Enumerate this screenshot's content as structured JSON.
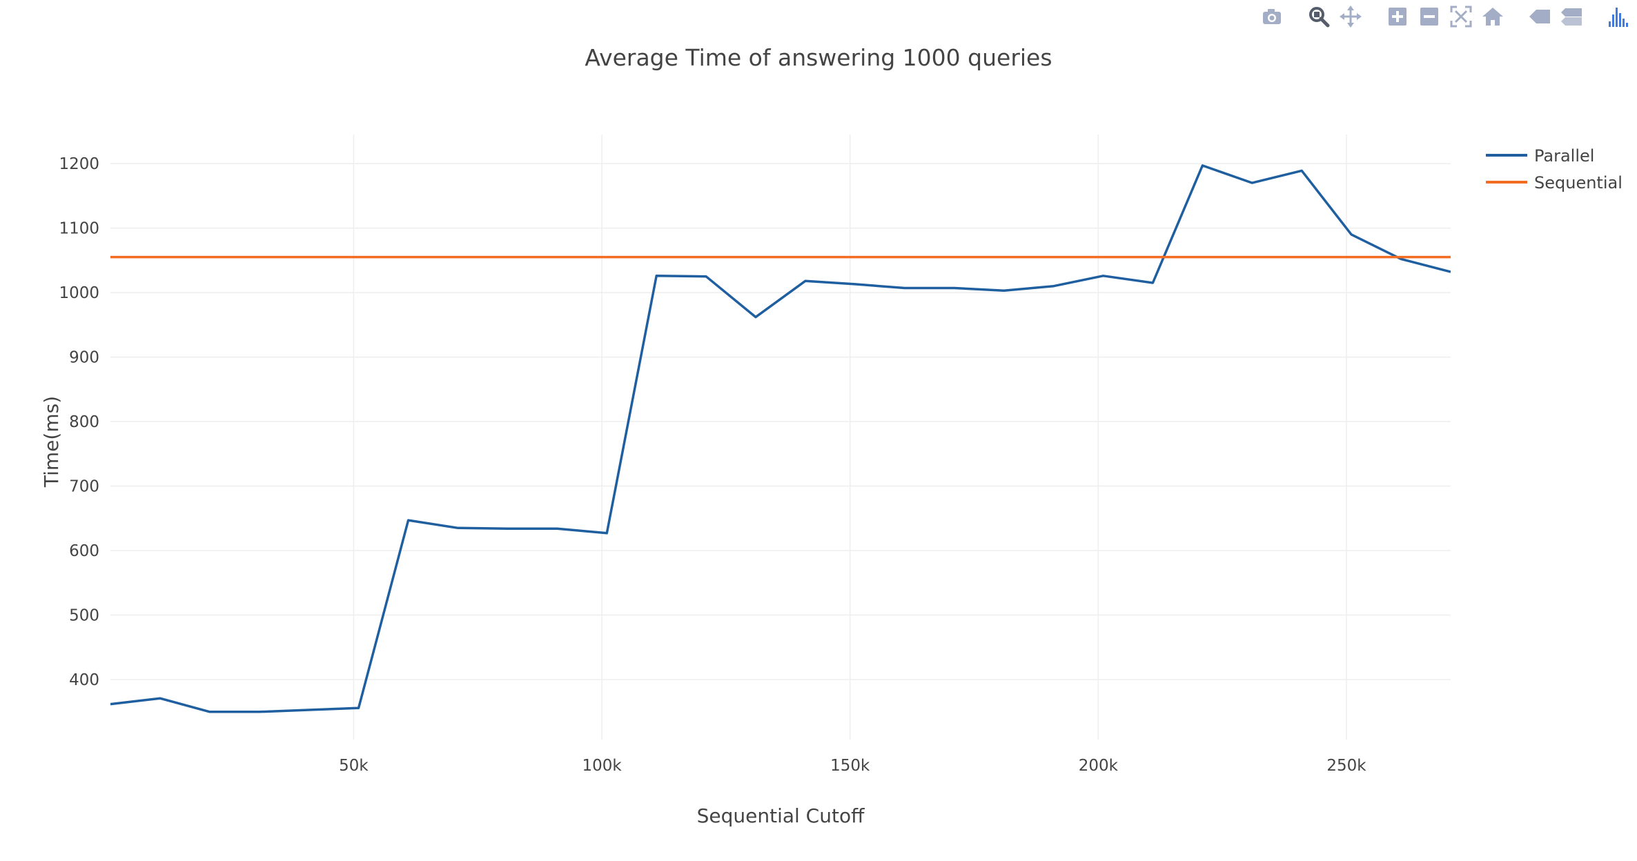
{
  "modebar": {
    "color": "#a3aec6",
    "accent": "#447adb",
    "groups": [
      [
        "camera-icon"
      ],
      [
        "zoom-icon",
        "pan-icon"
      ],
      [
        "zoom-in-icon",
        "zoom-out-icon",
        "autoscale-icon",
        "reset-axes-icon"
      ],
      [
        "hover-closest-icon",
        "hover-compare-icon"
      ],
      [
        "plotly-logo-icon"
      ]
    ]
  },
  "chart_data": {
    "type": "line",
    "title": "Average Time of answering 1000 queries",
    "xlabel": "Sequential Cutoff",
    "ylabel": "Time(ms)",
    "xlim": [
      1000,
      271000
    ],
    "ylim": [
      307,
      1245
    ],
    "xticks": [
      {
        "value": 50000,
        "label": "50k"
      },
      {
        "value": 100000,
        "label": "100k"
      },
      {
        "value": 150000,
        "label": "150k"
      },
      {
        "value": 200000,
        "label": "200k"
      },
      {
        "value": 250000,
        "label": "250k"
      }
    ],
    "yticks": [
      {
        "value": 400,
        "label": "400"
      },
      {
        "value": 500,
        "label": "500"
      },
      {
        "value": 600,
        "label": "600"
      },
      {
        "value": 700,
        "label": "700"
      },
      {
        "value": 800,
        "label": "800"
      },
      {
        "value": 900,
        "label": "900"
      },
      {
        "value": 1000,
        "label": "1000"
      },
      {
        "value": 1100,
        "label": "1100"
      },
      {
        "value": 1200,
        "label": "1200"
      }
    ],
    "grid": true,
    "legend_position": "top-right",
    "series": [
      {
        "name": "Parallel",
        "color": "#1f5fa0",
        "x": [
          1000,
          11000,
          21000,
          31000,
          41000,
          51000,
          61000,
          71000,
          81000,
          91000,
          101000,
          111000,
          121000,
          131000,
          141000,
          151000,
          161000,
          171000,
          181000,
          191000,
          201000,
          211000,
          221000,
          231000,
          241000,
          251000,
          261000,
          271000
        ],
        "y": [
          362,
          371,
          350,
          350,
          353,
          356,
          647,
          635,
          634,
          634,
          627,
          1026,
          1025,
          962,
          1018,
          1013,
          1007,
          1007,
          1003,
          1010,
          1026,
          1015,
          1197,
          1170,
          1189,
          1090,
          1052,
          1032
        ]
      },
      {
        "name": "Sequential",
        "color": "#f26c22",
        "x": [
          1000,
          271000
        ],
        "y": [
          1055,
          1055
        ]
      }
    ]
  }
}
